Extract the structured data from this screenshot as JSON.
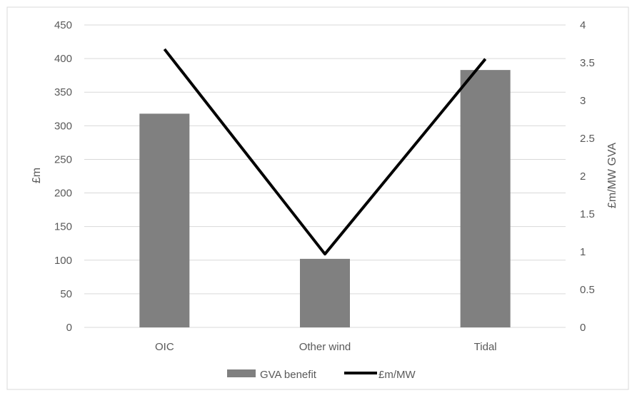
{
  "chart_data": {
    "type": "bar",
    "categories": [
      "OIC",
      "Other wind",
      "Tidal"
    ],
    "series": [
      {
        "name": "GVA benefit",
        "type": "bar",
        "axis": "left",
        "values": [
          318,
          102,
          383
        ],
        "color": "#808080"
      },
      {
        "name": "£m/MW",
        "type": "line",
        "axis": "right",
        "values": [
          3.68,
          0.97,
          3.55
        ],
        "color": "#000000"
      }
    ],
    "title": "",
    "ylabel": "£m",
    "y2label": "£m/MW GVA",
    "ylim": [
      0,
      450
    ],
    "y2lim": [
      0,
      4
    ],
    "yticks": [
      "0",
      "50",
      "100",
      "150",
      "200",
      "250",
      "300",
      "350",
      "400",
      "450"
    ],
    "y2ticks": [
      "0",
      "0.5",
      "1",
      "1.5",
      "2",
      "2.5",
      "3",
      "3.5",
      "4"
    ],
    "grid": true,
    "legend": {
      "position": "bottom",
      "entries": [
        "GVA benefit",
        "£m/MW"
      ]
    }
  },
  "colors": {
    "bar": "#808080",
    "line": "#000000",
    "grid": "#d9d9d9",
    "text": "#595959",
    "border": "#d9d9d9"
  }
}
